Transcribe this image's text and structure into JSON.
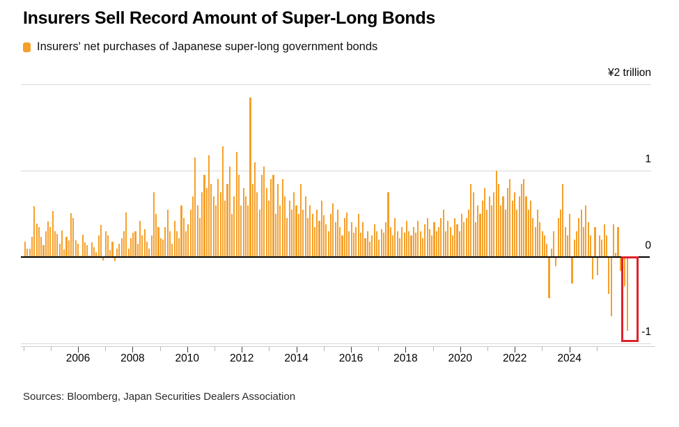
{
  "title": "Insurers Sell Record Amount of Super-Long Bonds",
  "legend": {
    "label": "Insurers' net purchases of Japanese super-long government bonds",
    "swatch_color": "#F5A02B"
  },
  "source": "Sources: Bloomberg, Japan Securities Dealers Association",
  "colors": {
    "bar": "#F5A02B",
    "highlight_box": "#E0222A",
    "zero_line": "#000000",
    "gridline": "#d9d9d9"
  },
  "chart_data": {
    "type": "bar",
    "title": "Insurers Sell Record Amount of Super-Long Bonds",
    "series_name": "Insurers' net purchases of Japanese super-long government bonds",
    "unit_label": "¥2 trillion",
    "frequency": "monthly",
    "start": "2004-01",
    "end": "2025-11",
    "ylim": [
      -1.05,
      2.05
    ],
    "grid": "horizontal",
    "legend_position": "top-left",
    "yticks": [
      {
        "value": 2,
        "label": "¥2 trillion"
      },
      {
        "value": 1,
        "label": "1"
      },
      {
        "value": 0,
        "label": "0"
      },
      {
        "value": -1,
        "label": "-1"
      }
    ],
    "xticks_labeled": [
      2006,
      2008,
      2010,
      2012,
      2014,
      2016,
      2018,
      2020,
      2022,
      2024
    ],
    "xticks_minor": [
      2004,
      2005,
      2006,
      2007,
      2008,
      2009,
      2010,
      2011,
      2012,
      2013,
      2014,
      2015,
      2016,
      2017,
      2018,
      2019,
      2020,
      2021,
      2022,
      2023,
      2024,
      2025
    ],
    "highlight": {
      "last_n_bars": 3,
      "meaning": "record net selling of super-long bonds"
    },
    "values": [
      0.18,
      0.1,
      0.1,
      0.23,
      0.59,
      0.39,
      0.35,
      0.23,
      0.14,
      0.3,
      0.41,
      0.35,
      0.53,
      0.3,
      0.27,
      0.15,
      0.31,
      0.09,
      0.23,
      0.19,
      0.51,
      0.45,
      0.19,
      0.15,
      0.02,
      0.26,
      0.17,
      0.14,
      0.02,
      0.17,
      0.11,
      0.06,
      0.25,
      0.37,
      -0.03,
      0.3,
      0.25,
      0.08,
      0.18,
      -0.04,
      0.1,
      0.15,
      0.22,
      0.3,
      0.52,
      0.1,
      0.22,
      0.28,
      0.3,
      0.15,
      0.42,
      0.25,
      0.32,
      0.18,
      0.1,
      0.25,
      0.75,
      0.5,
      0.35,
      0.22,
      0.2,
      0.35,
      0.55,
      0.3,
      0.15,
      0.42,
      0.3,
      0.22,
      0.6,
      0.45,
      0.3,
      0.38,
      0.55,
      0.7,
      1.15,
      0.6,
      0.45,
      0.75,
      0.95,
      0.8,
      1.18,
      0.85,
      0.7,
      0.6,
      0.9,
      0.75,
      1.28,
      0.65,
      0.85,
      1.05,
      0.5,
      0.7,
      1.22,
      0.95,
      0.6,
      0.8,
      0.7,
      0.6,
      1.85,
      0.85,
      1.1,
      0.75,
      0.55,
      0.95,
      1.05,
      0.8,
      0.65,
      0.9,
      0.95,
      0.5,
      0.85,
      0.6,
      0.9,
      0.7,
      0.45,
      0.65,
      0.55,
      0.75,
      0.6,
      0.5,
      0.85,
      0.55,
      0.7,
      0.45,
      0.6,
      0.5,
      0.35,
      0.55,
      0.42,
      0.65,
      0.48,
      0.38,
      0.3,
      0.5,
      0.62,
      0.4,
      0.55,
      0.35,
      0.25,
      0.45,
      0.52,
      0.3,
      0.4,
      0.28,
      0.35,
      0.5,
      0.28,
      0.4,
      0.22,
      0.3,
      0.18,
      0.25,
      0.38,
      0.3,
      0.2,
      0.32,
      0.28,
      0.4,
      0.75,
      0.35,
      0.25,
      0.45,
      0.3,
      0.22,
      0.35,
      0.28,
      0.42,
      0.3,
      0.25,
      0.35,
      0.28,
      0.42,
      0.3,
      0.22,
      0.38,
      0.45,
      0.32,
      0.25,
      0.4,
      0.3,
      0.35,
      0.45,
      0.55,
      0.3,
      0.42,
      0.35,
      0.25,
      0.45,
      0.38,
      0.3,
      0.5,
      0.4,
      0.45,
      0.55,
      0.85,
      0.75,
      0.4,
      0.6,
      0.5,
      0.65,
      0.8,
      0.55,
      0.7,
      0.6,
      0.75,
      1.0,
      0.85,
      0.6,
      0.7,
      0.55,
      0.8,
      0.9,
      0.65,
      0.75,
      0.55,
      0.7,
      0.85,
      0.9,
      0.7,
      0.55,
      0.65,
      0.45,
      0.35,
      0.55,
      0.4,
      0.3,
      0.25,
      0.15,
      -0.47,
      0.1,
      0.3,
      -0.1,
      0.45,
      0.55,
      0.85,
      0.35,
      0.25,
      0.5,
      -0.3,
      0.2,
      0.3,
      0.45,
      0.55,
      0.35,
      0.6,
      0.4,
      0.25,
      -0.25,
      0.35,
      -0.2,
      0.25,
      0.2,
      0.38,
      0.25,
      -0.42,
      -0.68,
      0.38,
      0.05,
      0.35,
      -0.15,
      -0.27,
      -0.33,
      -0.85
    ]
  }
}
